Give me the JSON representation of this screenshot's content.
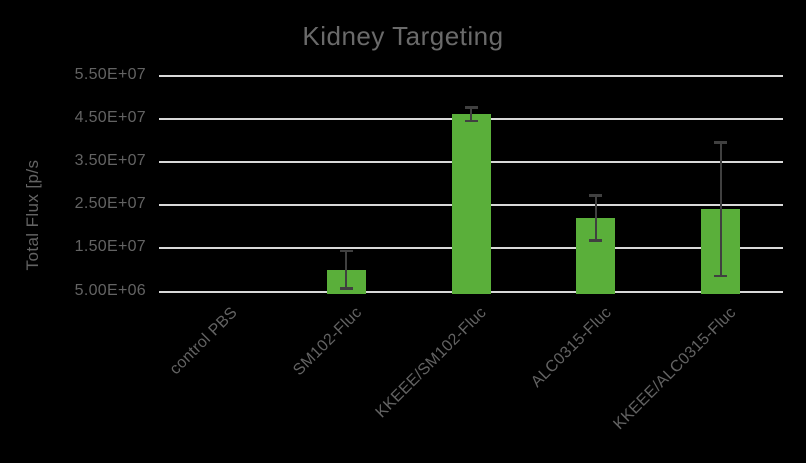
{
  "chart_data": {
    "type": "bar",
    "title": "Kidney Targeting",
    "ylabel": "Total Flux [p/s",
    "xlabel": "",
    "categories": [
      "control PBS",
      "SM102-Fluc",
      "KKEEE/SM102-Fluc",
      "ALC0315-Fluc",
      "KKEEE/ALC0315-Fluc"
    ],
    "values": [
      0,
      10000000,
      46000000,
      22000000,
      24000000
    ],
    "errors": [
      0,
      4400000,
      1600000,
      5300000,
      15500000
    ],
    "ylim": [
      5000000,
      55000000
    ],
    "yticks": [
      {
        "value": 5000000,
        "label": "5.00E+06"
      },
      {
        "value": 15000000,
        "label": "1.50E+07"
      },
      {
        "value": 25000000,
        "label": "2.50E+07"
      },
      {
        "value": 35000000,
        "label": "3.50E+07"
      },
      {
        "value": 45000000,
        "label": "4.50E+07"
      },
      {
        "value": 55000000,
        "label": "5.50E+07"
      }
    ],
    "grid": true,
    "legend": false,
    "x_tick_rotation_deg": 45,
    "colors": {
      "background": "#000000",
      "bar": "#5aaf3a",
      "gridline": "#d9d9d9",
      "error_bar": "#404040",
      "title_text": "#6a6a6a",
      "axis_text": "#636363"
    }
  }
}
